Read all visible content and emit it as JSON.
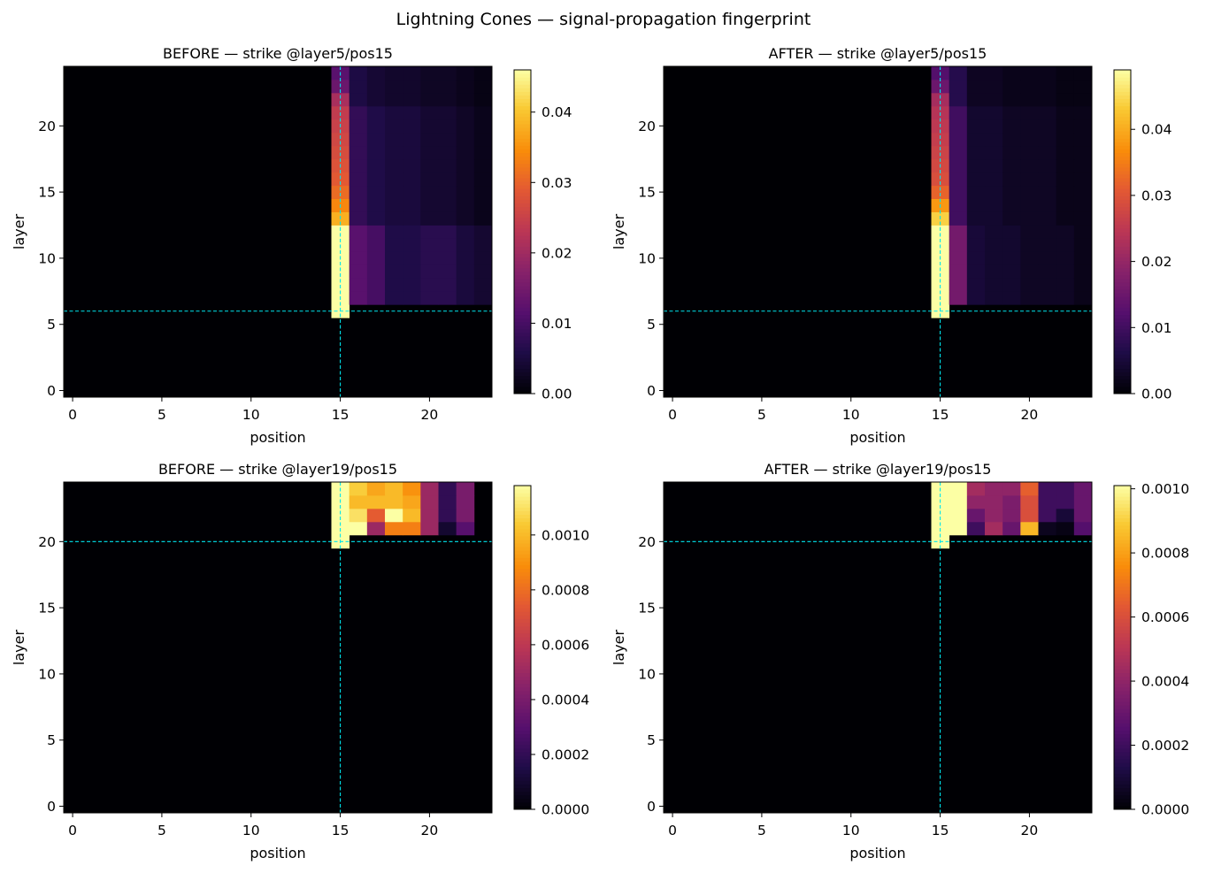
{
  "figure": {
    "suptitle": "Lightning Cones — signal-propagation fingerprint"
  },
  "chart_data": [
    {
      "type": "heatmap",
      "title": "BEFORE — strike @layer5/pos15",
      "xlabel": "position",
      "ylabel": "layer",
      "colormap": "inferno",
      "n_positions": 24,
      "n_layers": 25,
      "x_ticks": [
        0,
        5,
        10,
        15,
        20
      ],
      "y_ticks": [
        0,
        5,
        10,
        15,
        20
      ],
      "strike": {
        "layer": 5,
        "pos": 15
      },
      "marker_lines": {
        "x": 15,
        "y": 6,
        "color": "#00e5ee",
        "style": "dashed"
      },
      "clim": [
        0,
        0.046
      ],
      "colorbar_ticks": [
        "0.00",
        "0.01",
        "0.02",
        "0.03",
        "0.04"
      ],
      "colorbar_tick_values": [
        0,
        0.01,
        0.02,
        0.03,
        0.04
      ],
      "strike_column": {
        "layers": [
          6,
          7,
          8,
          9,
          10,
          11,
          12,
          13,
          14,
          15,
          16,
          17,
          18,
          19,
          20,
          21,
          22,
          23,
          24
        ],
        "values": [
          0.046,
          0.046,
          0.046,
          0.046,
          0.046,
          0.046,
          0.046,
          0.038,
          0.034,
          0.031,
          0.029,
          0.028,
          0.027,
          0.026,
          0.025,
          0.024,
          0.021,
          0.014,
          0.012
        ]
      },
      "spread_by_position": {
        "positions": [
          16,
          17,
          18,
          19,
          20,
          21,
          22,
          23
        ],
        "values_layer7_to_12": [
          0.012,
          0.01,
          0.006,
          0.006,
          0.007,
          0.007,
          0.005,
          0.004
        ],
        "values_layer13_to_24": [
          0.008,
          0.006,
          0.005,
          0.005,
          0.004,
          0.004,
          0.003,
          0.002
        ]
      }
    },
    {
      "type": "heatmap",
      "title": "AFTER — strike @layer5/pos15",
      "xlabel": "position",
      "ylabel": "layer",
      "colormap": "inferno",
      "n_positions": 24,
      "n_layers": 25,
      "x_ticks": [
        0,
        5,
        10,
        15,
        20
      ],
      "y_ticks": [
        0,
        5,
        10,
        15,
        20
      ],
      "strike": {
        "layer": 5,
        "pos": 15
      },
      "marker_lines": {
        "x": 15,
        "y": 6,
        "color": "#00e5ee",
        "style": "dashed"
      },
      "clim": [
        0,
        0.049
      ],
      "colorbar_ticks": [
        "0.00",
        "0.01",
        "0.02",
        "0.03",
        "0.04"
      ],
      "colorbar_tick_values": [
        0,
        0.01,
        0.02,
        0.03,
        0.04
      ],
      "strike_column": {
        "layers": [
          6,
          7,
          8,
          9,
          10,
          11,
          12,
          13,
          14,
          15,
          16,
          17,
          18,
          19,
          20,
          21,
          22,
          23,
          24
        ],
        "values": [
          0.049,
          0.049,
          0.049,
          0.049,
          0.049,
          0.049,
          0.049,
          0.044,
          0.038,
          0.032,
          0.029,
          0.028,
          0.027,
          0.026,
          0.025,
          0.024,
          0.022,
          0.015,
          0.012
        ]
      },
      "spread_by_position": {
        "positions": [
          16,
          17,
          18,
          19,
          20,
          21,
          22,
          23
        ],
        "values_layer7_to_12": [
          0.016,
          0.005,
          0.004,
          0.004,
          0.003,
          0.003,
          0.003,
          0.002
        ],
        "values_layer13_to_24": [
          0.01,
          0.004,
          0.004,
          0.003,
          0.003,
          0.003,
          0.002,
          0.002
        ]
      }
    },
    {
      "type": "heatmap",
      "title": "BEFORE — strike @layer19/pos15",
      "xlabel": "position",
      "ylabel": "layer",
      "colormap": "inferno",
      "n_positions": 24,
      "n_layers": 25,
      "x_ticks": [
        0,
        5,
        10,
        15,
        20
      ],
      "y_ticks": [
        0,
        5,
        10,
        15,
        20
      ],
      "strike": {
        "layer": 19,
        "pos": 15
      },
      "marker_lines": {
        "x": 15,
        "y": 20,
        "color": "#00e5ee",
        "style": "dashed"
      },
      "clim": [
        0,
        0.00118
      ],
      "colorbar_ticks": [
        "0.0000",
        "0.0002",
        "0.0004",
        "0.0006",
        "0.0008",
        "0.0010"
      ],
      "colorbar_tick_values": [
        0,
        0.0002,
        0.0004,
        0.0006,
        0.0008,
        0.001
      ],
      "rows": [
        {
          "layer": 20,
          "start_pos": 15,
          "values": [
            0.00118
          ]
        },
        {
          "layer": 21,
          "start_pos": 15,
          "values": [
            0.00118,
            0.00118,
            0.0005,
            0.00085,
            0.00085,
            0.0005,
            0.0001,
            0.0003
          ]
        },
        {
          "layer": 22,
          "start_pos": 15,
          "values": [
            0.00118,
            0.0011,
            0.00075,
            0.00118,
            0.001,
            0.0005,
            0.0002,
            0.0004
          ]
        },
        {
          "layer": 23,
          "start_pos": 15,
          "values": [
            0.00118,
            0.001,
            0.001,
            0.001,
            0.00095,
            0.0005,
            0.0002,
            0.0004
          ]
        },
        {
          "layer": 24,
          "start_pos": 15,
          "values": [
            0.00118,
            0.00105,
            0.00095,
            0.001,
            0.0009,
            0.0005,
            0.0002,
            0.0004
          ]
        }
      ]
    },
    {
      "type": "heatmap",
      "title": "AFTER — strike @layer19/pos15",
      "xlabel": "position",
      "ylabel": "layer",
      "colormap": "inferno",
      "n_positions": 24,
      "n_layers": 25,
      "x_ticks": [
        0,
        5,
        10,
        15,
        20
      ],
      "y_ticks": [
        0,
        5,
        10,
        15,
        20
      ],
      "strike": {
        "layer": 19,
        "pos": 15
      },
      "marker_lines": {
        "x": 15,
        "y": 20,
        "color": "#00e5ee",
        "style": "dashed"
      },
      "clim": [
        0,
        0.00101
      ],
      "colorbar_ticks": [
        "0.0000",
        "0.0002",
        "0.0004",
        "0.0006",
        "0.0008",
        "0.0010"
      ],
      "colorbar_tick_values": [
        0,
        0.0002,
        0.0004,
        0.0006,
        0.0008,
        0.001
      ],
      "rows": [
        {
          "layer": 20,
          "start_pos": 15,
          "values": [
            0.00101
          ]
        },
        {
          "layer": 21,
          "start_pos": 15,
          "values": [
            0.00101,
            0.00101,
            0.0002,
            0.00045,
            0.0003,
            0.00085,
            5e-05,
            3e-05,
            0.00025
          ]
        },
        {
          "layer": 22,
          "start_pos": 15,
          "values": [
            0.00101,
            0.00101,
            0.0003,
            0.0004,
            0.00035,
            0.0006,
            0.0002,
            0.0001,
            0.0003
          ]
        },
        {
          "layer": 23,
          "start_pos": 15,
          "values": [
            0.00101,
            0.00101,
            0.0004,
            0.0004,
            0.00035,
            0.0006,
            0.0002,
            0.0002,
            0.0003
          ]
        },
        {
          "layer": 24,
          "start_pos": 15,
          "values": [
            0.00101,
            0.00101,
            0.00045,
            0.0004,
            0.0004,
            0.00065,
            0.0002,
            0.0002,
            0.0003
          ]
        }
      ]
    }
  ]
}
